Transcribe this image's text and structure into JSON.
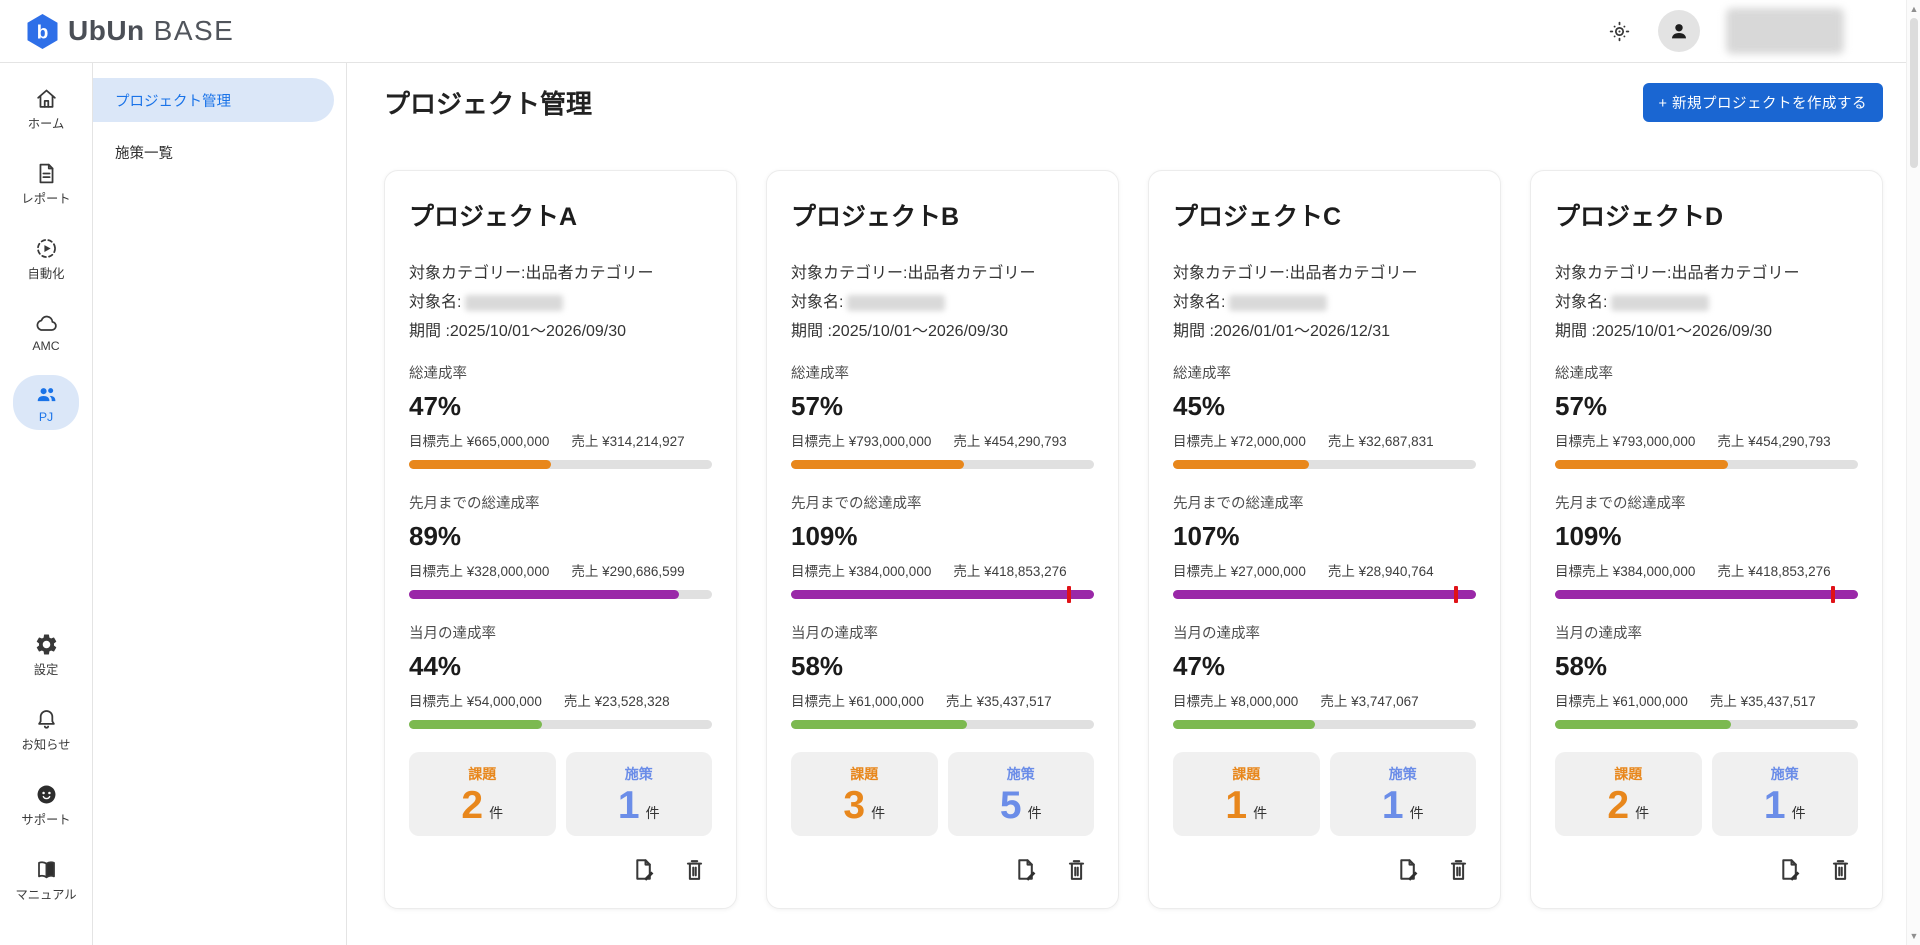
{
  "app": {
    "logo": {
      "mark_letter": "b",
      "word_bold": "UbUn",
      "word_light": "BASE"
    }
  },
  "header": {
    "icons": [
      "brightness-icon",
      "user-avatar-icon"
    ]
  },
  "sidebar": {
    "items": [
      {
        "label": "ホーム",
        "icon": "home-icon",
        "active": false
      },
      {
        "label": "レポート",
        "icon": "report-icon",
        "active": false
      },
      {
        "label": "自動化",
        "icon": "automation-icon",
        "active": false
      },
      {
        "label": "AMC",
        "icon": "cloud-icon",
        "active": false
      },
      {
        "label": "PJ",
        "icon": "people-icon",
        "active": true
      }
    ],
    "bottom_items": [
      {
        "label": "設定",
        "icon": "settings-icon"
      },
      {
        "label": "お知らせ",
        "icon": "bell-icon"
      },
      {
        "label": "サポート",
        "icon": "support-icon"
      },
      {
        "label": "マニュアル",
        "icon": "manual-icon"
      }
    ]
  },
  "subnav": {
    "items": [
      {
        "label": "プロジェクト管理",
        "active": true
      },
      {
        "label": "施策一覧",
        "active": false
      }
    ]
  },
  "main": {
    "title": "プロジェクト管理",
    "create_button_label": "+ 新規プロジェクトを作成する"
  },
  "labels": {
    "category_line": "対象カテゴリー:出品者カテゴリー",
    "target_prefix": "対象名:",
    "issues": "課題",
    "measures": "施策",
    "unit": "件"
  },
  "projects": [
    {
      "name": "プロジェクトA",
      "period": "期間 :2025/10/01〜2026/09/30",
      "metrics": [
        {
          "label": "総達成率",
          "percent": "47%",
          "target": "目標売上 ¥665,000,000",
          "sales": "売上 ¥314,214,927",
          "fill_pct": 47,
          "color": "orange",
          "marker_pct": null
        },
        {
          "label": "先月までの総達成率",
          "percent": "89%",
          "target": "目標売上 ¥328,000,000",
          "sales": "売上 ¥290,686,599",
          "fill_pct": 89,
          "color": "purple",
          "marker_pct": null
        },
        {
          "label": "当月の達成率",
          "percent": "44%",
          "target": "目標売上 ¥54,000,000",
          "sales": "売上 ¥23,528,328",
          "fill_pct": 44,
          "color": "green",
          "marker_pct": null
        }
      ],
      "issues_count": "2",
      "measures_count": "1"
    },
    {
      "name": "プロジェクトB",
      "period": "期間 :2025/10/01〜2026/09/30",
      "metrics": [
        {
          "label": "総達成率",
          "percent": "57%",
          "target": "目標売上 ¥793,000,000",
          "sales": "売上 ¥454,290,793",
          "fill_pct": 57,
          "color": "orange",
          "marker_pct": null
        },
        {
          "label": "先月までの総達成率",
          "percent": "109%",
          "target": "目標売上 ¥384,000,000",
          "sales": "売上 ¥418,853,276",
          "fill_pct": 100,
          "color": "purple",
          "marker_pct": 91.7
        },
        {
          "label": "当月の達成率",
          "percent": "58%",
          "target": "目標売上 ¥61,000,000",
          "sales": "売上 ¥35,437,517",
          "fill_pct": 58,
          "color": "green",
          "marker_pct": null
        }
      ],
      "issues_count": "3",
      "measures_count": "5"
    },
    {
      "name": "プロジェクトC",
      "period": "期間 :2026/01/01〜2026/12/31",
      "metrics": [
        {
          "label": "総達成率",
          "percent": "45%",
          "target": "目標売上 ¥72,000,000",
          "sales": "売上 ¥32,687,831",
          "fill_pct": 45,
          "color": "orange",
          "marker_pct": null
        },
        {
          "label": "先月までの総達成率",
          "percent": "107%",
          "target": "目標売上 ¥27,000,000",
          "sales": "売上 ¥28,940,764",
          "fill_pct": 100,
          "color": "purple",
          "marker_pct": 93.5
        },
        {
          "label": "当月の達成率",
          "percent": "47%",
          "target": "目標売上 ¥8,000,000",
          "sales": "売上 ¥3,747,067",
          "fill_pct": 47,
          "color": "green",
          "marker_pct": null
        }
      ],
      "issues_count": "1",
      "measures_count": "1"
    },
    {
      "name": "プロジェクトD",
      "period": "期間 :2025/10/01〜2026/09/30",
      "metrics": [
        {
          "label": "総達成率",
          "percent": "57%",
          "target": "目標売上 ¥793,000,000",
          "sales": "売上 ¥454,290,793",
          "fill_pct": 57,
          "color": "orange",
          "marker_pct": null
        },
        {
          "label": "先月までの総達成率",
          "percent": "109%",
          "target": "目標売上 ¥384,000,000",
          "sales": "売上 ¥418,853,276",
          "fill_pct": 100,
          "color": "purple",
          "marker_pct": 91.7
        },
        {
          "label": "当月の達成率",
          "percent": "58%",
          "target": "目標売上 ¥61,000,000",
          "sales": "売上 ¥35,437,517",
          "fill_pct": 58,
          "color": "green",
          "marker_pct": null
        }
      ],
      "issues_count": "2",
      "measures_count": "1"
    }
  ],
  "colors": {
    "primary_blue": "#1a66d2",
    "link_blue": "#1a73e8",
    "active_item_bg": "#dbe7f8",
    "bar_track": "#e0e0e0",
    "bar_orange": "#e8871c",
    "bar_purple": "#9a28a8",
    "bar_green": "#7cb950",
    "marker_red": "#e01218",
    "issues_orange": "#e8871c",
    "measures_blue": "#6b8de8"
  }
}
